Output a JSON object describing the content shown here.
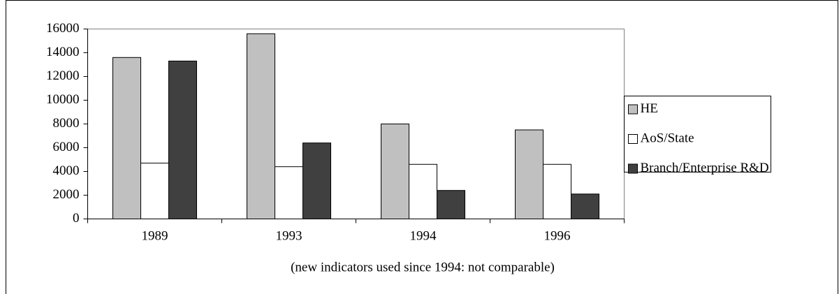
{
  "chart_data": {
    "type": "bar",
    "categories": [
      "1989",
      "1993",
      "1994",
      "1996"
    ],
    "series": [
      {
        "name": "HE",
        "color": "#c0c0c0",
        "values": [
          13600,
          15600,
          8000,
          7500
        ]
      },
      {
        "name": "AoS/State",
        "color": "#ffffff",
        "values": [
          4700,
          4400,
          4600,
          4600
        ]
      },
      {
        "name": "Branch/Enterprise R&D",
        "color": "#404040",
        "values": [
          13300,
          6400,
          2400,
          2100
        ]
      }
    ],
    "annotation": "(new indicators used since 1994: not comparable)",
    "ylim": [
      0,
      16000
    ],
    "yticks": [
      0,
      2000,
      4000,
      6000,
      8000,
      10000,
      12000,
      14000,
      16000
    ],
    "grid": false,
    "legend": "right"
  }
}
